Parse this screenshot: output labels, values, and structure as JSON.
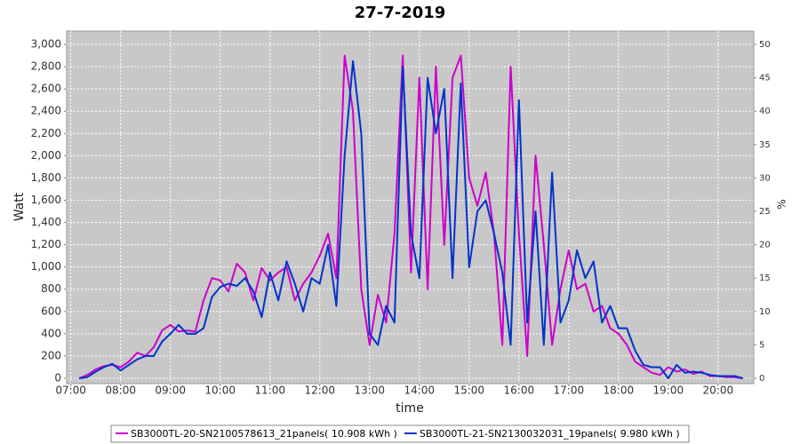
{
  "chart_data": {
    "type": "line",
    "title": "27-7-2019",
    "x_label": "time",
    "y_label": "Watt",
    "y2_label": "%",
    "x": [
      "07:10",
      "07:20",
      "07:30",
      "07:40",
      "07:50",
      "08:00",
      "08:10",
      "08:20",
      "08:30",
      "08:40",
      "08:50",
      "09:00",
      "09:10",
      "09:20",
      "09:30",
      "09:40",
      "09:50",
      "10:00",
      "10:10",
      "10:20",
      "10:30",
      "10:40",
      "10:50",
      "11:00",
      "11:10",
      "11:20",
      "11:30",
      "11:40",
      "11:50",
      "12:00",
      "12:10",
      "12:20",
      "12:30",
      "12:40",
      "12:50",
      "13:00",
      "13:10",
      "13:20",
      "13:30",
      "13:40",
      "13:50",
      "14:00",
      "14:10",
      "14:20",
      "14:30",
      "14:40",
      "14:50",
      "15:00",
      "15:10",
      "15:20",
      "15:30",
      "15:40",
      "15:50",
      "16:00",
      "16:10",
      "16:20",
      "16:30",
      "16:40",
      "16:50",
      "17:00",
      "17:10",
      "17:20",
      "17:30",
      "17:40",
      "17:50",
      "18:00",
      "18:10",
      "18:20",
      "18:30",
      "18:40",
      "18:50",
      "19:00",
      "19:10",
      "19:20",
      "19:30",
      "19:40",
      "19:50",
      "20:00",
      "20:10",
      "20:20",
      "20:30"
    ],
    "series": [
      {
        "name": "SB3000TL-20-SN2100578613_21panels( 10.908 kWh )",
        "color": "#cc00cc",
        "values": [
          0,
          30,
          80,
          110,
          120,
          100,
          150,
          230,
          200,
          280,
          430,
          480,
          420,
          430,
          420,
          700,
          900,
          880,
          780,
          1030,
          950,
          700,
          990,
          880,
          950,
          1000,
          700,
          850,
          950,
          1100,
          1300,
          900,
          2900,
          2400,
          800,
          300,
          750,
          500,
          1300,
          2900,
          950,
          2700,
          800,
          2800,
          1200,
          2700,
          2900,
          1800,
          1550,
          1850,
          1300,
          300,
          2800,
          1300,
          200,
          2000,
          1200,
          300,
          800,
          1150,
          800,
          850,
          600,
          650,
          450,
          400,
          300,
          150,
          100,
          50,
          30,
          100,
          60,
          80,
          40,
          60,
          20,
          20,
          10,
          10,
          0
        ]
      },
      {
        "name": "SB3000TL-21-SN2130032031_19panels( 9.980 kWh )",
        "color": "#0033cc",
        "values": [
          0,
          10,
          60,
          100,
          130,
          70,
          120,
          170,
          200,
          200,
          330,
          400,
          480,
          400,
          400,
          450,
          730,
          820,
          850,
          830,
          900,
          780,
          550,
          950,
          700,
          1050,
          850,
          600,
          900,
          850,
          1200,
          650,
          2000,
          2850,
          2200,
          400,
          300,
          650,
          500,
          2800,
          1300,
          900,
          2700,
          2200,
          2600,
          900,
          2650,
          1000,
          1500,
          1600,
          1300,
          950,
          300,
          2500,
          500,
          1500,
          300,
          1850,
          500,
          700,
          1150,
          900,
          1050,
          500,
          650,
          450,
          450,
          250,
          120,
          100,
          100,
          0,
          120,
          50,
          60,
          50,
          30,
          20,
          20,
          20,
          0
        ]
      }
    ],
    "xlim": [
      "06:55",
      "20:43"
    ],
    "xticks": [
      "07:00",
      "08:00",
      "09:00",
      "10:00",
      "11:00",
      "12:00",
      "13:00",
      "14:00",
      "15:00",
      "16:00",
      "17:00",
      "18:00",
      "19:00",
      "20:00"
    ],
    "ylim": [
      -48,
      3120
    ],
    "yticks": [
      0,
      {
        "value": 200,
        "label": "200"
      },
      {
        "value": 400,
        "label": "400"
      },
      {
        "value": 600,
        "label": "600"
      },
      {
        "value": 800,
        "label": "800"
      },
      {
        "value": 1000,
        "label": "1,000"
      },
      {
        "value": 1200,
        "label": "1,200"
      },
      {
        "value": 1400,
        "label": "1,400"
      },
      {
        "value": 1600,
        "label": "1,600"
      },
      {
        "value": 1800,
        "label": "1,800"
      },
      {
        "value": 2000,
        "label": "2,000"
      },
      {
        "value": 2200,
        "label": "2,200"
      },
      {
        "value": 2400,
        "label": "2,400"
      },
      {
        "value": 2600,
        "label": "2,600"
      },
      {
        "value": 2800,
        "label": "2,800"
      },
      {
        "value": 3000,
        "label": "3,000"
      }
    ],
    "y2lim": [
      -0.8,
      52
    ],
    "y2ticks": [
      0,
      5,
      10,
      15,
      20,
      25,
      30,
      35,
      40,
      45,
      50
    ],
    "grid": true,
    "legend": "bottom"
  }
}
